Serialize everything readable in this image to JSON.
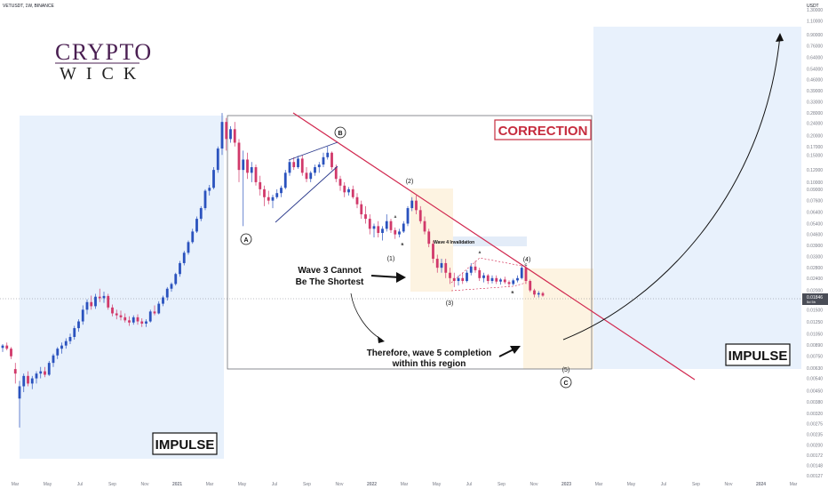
{
  "header": {
    "ticker_line": "VETUSDT, 1W, BINANCE",
    "currency": "USDT"
  },
  "logo": {
    "line1": "CRYPTO",
    "line2": "WICK"
  },
  "colors": {
    "up": "#2a52be",
    "down": "#d1396a",
    "trendline": "#d1284f",
    "impulse_zone": "#e8f1fc",
    "target_zone": "#fdf3e1",
    "correction_label": "#c62c3e",
    "invalidation_zone": "#e3ecf8"
  },
  "chart_data": {
    "type": "candlestick",
    "title": "VETUSDT, 1W, BINANCE",
    "y_axis_unit": "USDT",
    "y_scale": "log",
    "y_ticks": [
      "1.30000",
      "1.10000",
      "0.90000",
      "0.76000",
      "0.64000",
      "0.54000",
      "0.46000",
      "0.39000",
      "0.33000",
      "0.28000",
      "0.24000",
      "0.20000",
      "0.17000",
      "0.15000",
      "0.12000",
      "0.10000",
      "0.09000",
      "0.07600",
      "0.06400",
      "0.05400",
      "0.04600",
      "0.03900",
      "0.03300",
      "0.02800",
      "0.02400",
      "0.02000",
      "0.01700",
      "0.01500",
      "0.01250",
      "0.01050",
      "0.00890",
      "0.00750",
      "0.00630",
      "0.00540",
      "0.00450",
      "0.00380",
      "0.00320",
      "0.00275",
      "0.00235",
      "0.00200",
      "0.00172",
      "0.00148",
      "0.00127"
    ],
    "current_price": "0.01846",
    "current_price_sub": "5d 5h",
    "x_ticks": [
      "Mar",
      "May",
      "Jul",
      "Sep",
      "Nov",
      "2021",
      "Mar",
      "May",
      "Jul",
      "Sep",
      "Nov",
      "2022",
      "Mar",
      "May",
      "Jul",
      "Sep",
      "Nov",
      "2023",
      "Mar",
      "May",
      "Jul",
      "Sep",
      "Nov",
      "2024",
      "Mar"
    ],
    "annotations": {
      "correction": "CORRECTION",
      "impulse_left": "IMPULSE",
      "impulse_right": "IMPULSE",
      "wave_a": "A",
      "wave_b": "B",
      "wave_c": "C",
      "wave1": "(1)",
      "wave2": "(2)",
      "wave3": "(3)",
      "wave4": "(4)",
      "wave5": "(5)",
      "sub_a": "A",
      "sub_b": "B",
      "tri_a": "A",
      "tri_b": "B",
      "tri_c": "C",
      "wave4_invalidation": "Wave 4 Invalidation",
      "wave3_note_1": "Wave 3 Cannot",
      "wave3_note_2": "Be The Shortest",
      "wave5_note_1": "Therefore, wave 5 completion",
      "wave5_note_2": "within this region"
    },
    "candles": [
      [
        0.0085,
        0.009,
        0.008,
        0.0088
      ],
      [
        0.0088,
        0.0092,
        0.0082,
        0.0084
      ],
      [
        0.0084,
        0.0086,
        0.0072,
        0.0075
      ],
      [
        0.0062,
        0.0068,
        0.005,
        0.0058
      ],
      [
        0.004,
        0.0052,
        0.0026,
        0.0048
      ],
      [
        0.0048,
        0.0058,
        0.0044,
        0.0056
      ],
      [
        0.0056,
        0.006,
        0.0048,
        0.005
      ],
      [
        0.005,
        0.0056,
        0.0046,
        0.0054
      ],
      [
        0.0054,
        0.006,
        0.005,
        0.0058
      ],
      [
        0.0058,
        0.0064,
        0.0054,
        0.006
      ],
      [
        0.006,
        0.0064,
        0.0055,
        0.0057
      ],
      [
        0.0057,
        0.007,
        0.0056,
        0.0068
      ],
      [
        0.0068,
        0.0078,
        0.0064,
        0.0076
      ],
      [
        0.0076,
        0.0086,
        0.0072,
        0.0084
      ],
      [
        0.0084,
        0.0092,
        0.0078,
        0.0088
      ],
      [
        0.0088,
        0.0098,
        0.0084,
        0.0094
      ],
      [
        0.0094,
        0.0105,
        0.009,
        0.01
      ],
      [
        0.01,
        0.0118,
        0.0096,
        0.0114
      ],
      [
        0.0114,
        0.013,
        0.0108,
        0.0126
      ],
      [
        0.0126,
        0.016,
        0.012,
        0.015
      ],
      [
        0.015,
        0.0175,
        0.014,
        0.0168
      ],
      [
        0.0168,
        0.0185,
        0.015,
        0.0158
      ],
      [
        0.0158,
        0.019,
        0.0152,
        0.0182
      ],
      [
        0.0182,
        0.0205,
        0.0168,
        0.0178
      ],
      [
        0.0178,
        0.0196,
        0.0166,
        0.0184
      ],
      [
        0.0184,
        0.019,
        0.015,
        0.0155
      ],
      [
        0.0155,
        0.0162,
        0.0136,
        0.0142
      ],
      [
        0.0142,
        0.015,
        0.013,
        0.0138
      ],
      [
        0.0138,
        0.0148,
        0.0128,
        0.0134
      ],
      [
        0.0134,
        0.0142,
        0.0124,
        0.0128
      ],
      [
        0.0128,
        0.0136,
        0.0118,
        0.0124
      ],
      [
        0.0124,
        0.0138,
        0.012,
        0.0134
      ],
      [
        0.0134,
        0.014,
        0.012,
        0.0126
      ],
      [
        0.0126,
        0.0132,
        0.0116,
        0.0122
      ],
      [
        0.0122,
        0.013,
        0.0116,
        0.0126
      ],
      [
        0.0126,
        0.015,
        0.0124,
        0.0146
      ],
      [
        0.0146,
        0.016,
        0.0138,
        0.0142
      ],
      [
        0.0142,
        0.017,
        0.014,
        0.0164
      ],
      [
        0.0164,
        0.0185,
        0.0158,
        0.018
      ],
      [
        0.018,
        0.021,
        0.0172,
        0.0205
      ],
      [
        0.0205,
        0.0225,
        0.0196,
        0.022
      ],
      [
        0.022,
        0.026,
        0.0215,
        0.0255
      ],
      [
        0.0255,
        0.031,
        0.0245,
        0.03
      ],
      [
        0.03,
        0.036,
        0.029,
        0.035
      ],
      [
        0.035,
        0.042,
        0.034,
        0.041
      ],
      [
        0.041,
        0.05,
        0.04,
        0.048
      ],
      [
        0.048,
        0.06,
        0.047,
        0.058
      ],
      [
        0.058,
        0.07,
        0.056,
        0.068
      ],
      [
        0.068,
        0.09,
        0.066,
        0.088
      ],
      [
        0.088,
        0.096,
        0.082,
        0.092
      ],
      [
        0.092,
        0.125,
        0.09,
        0.12
      ],
      [
        0.12,
        0.17,
        0.115,
        0.165
      ],
      [
        0.165,
        0.28,
        0.15,
        0.245
      ],
      [
        0.245,
        0.26,
        0.16,
        0.19
      ],
      [
        0.19,
        0.23,
        0.18,
        0.22
      ],
      [
        0.22,
        0.245,
        0.17,
        0.18
      ],
      [
        0.18,
        0.19,
        0.1,
        0.12
      ],
      [
        0.12,
        0.16,
        0.052,
        0.14
      ],
      [
        0.14,
        0.155,
        0.105,
        0.115
      ],
      [
        0.115,
        0.135,
        0.1,
        0.125
      ],
      [
        0.125,
        0.13,
        0.095,
        0.1
      ],
      [
        0.1,
        0.11,
        0.082,
        0.09
      ],
      [
        0.09,
        0.095,
        0.07,
        0.08
      ],
      [
        0.08,
        0.088,
        0.072,
        0.076
      ],
      [
        0.076,
        0.083,
        0.068,
        0.08
      ],
      [
        0.08,
        0.09,
        0.078,
        0.085
      ],
      [
        0.085,
        0.095,
        0.08,
        0.092
      ],
      [
        0.092,
        0.12,
        0.09,
        0.115
      ],
      [
        0.115,
        0.14,
        0.11,
        0.135
      ],
      [
        0.135,
        0.145,
        0.12,
        0.125
      ],
      [
        0.125,
        0.148,
        0.122,
        0.142
      ],
      [
        0.142,
        0.15,
        0.11,
        0.115
      ],
      [
        0.115,
        0.125,
        0.1,
        0.105
      ],
      [
        0.105,
        0.118,
        0.1,
        0.115
      ],
      [
        0.115,
        0.13,
        0.11,
        0.125
      ],
      [
        0.125,
        0.135,
        0.115,
        0.13
      ],
      [
        0.13,
        0.155,
        0.125,
        0.145
      ],
      [
        0.145,
        0.17,
        0.14,
        0.155
      ],
      [
        0.155,
        0.158,
        0.12,
        0.125
      ],
      [
        0.125,
        0.13,
        0.1,
        0.105
      ],
      [
        0.105,
        0.11,
        0.088,
        0.095
      ],
      [
        0.095,
        0.1,
        0.08,
        0.086
      ],
      [
        0.086,
        0.093,
        0.082,
        0.09
      ],
      [
        0.09,
        0.095,
        0.078,
        0.08
      ],
      [
        0.08,
        0.085,
        0.068,
        0.072
      ],
      [
        0.072,
        0.076,
        0.058,
        0.062
      ],
      [
        0.062,
        0.07,
        0.054,
        0.058
      ],
      [
        0.058,
        0.062,
        0.046,
        0.05
      ],
      [
        0.05,
        0.054,
        0.044,
        0.052
      ],
      [
        0.052,
        0.056,
        0.044,
        0.047
      ],
      [
        0.047,
        0.052,
        0.042,
        0.05
      ],
      [
        0.05,
        0.062,
        0.048,
        0.056
      ],
      [
        0.056,
        0.058,
        0.047,
        0.049
      ],
      [
        0.049,
        0.051,
        0.043,
        0.046
      ],
      [
        0.046,
        0.05,
        0.044,
        0.048
      ],
      [
        0.048,
        0.056,
        0.047,
        0.054
      ],
      [
        0.054,
        0.07,
        0.052,
        0.068
      ],
      [
        0.068,
        0.08,
        0.065,
        0.076
      ],
      [
        0.076,
        0.082,
        0.062,
        0.066
      ],
      [
        0.066,
        0.07,
        0.054,
        0.056
      ],
      [
        0.056,
        0.06,
        0.046,
        0.048
      ],
      [
        0.048,
        0.05,
        0.038,
        0.04
      ],
      [
        0.04,
        0.042,
        0.03,
        0.032
      ],
      [
        0.032,
        0.034,
        0.026,
        0.028
      ],
      [
        0.028,
        0.032,
        0.026,
        0.03
      ],
      [
        0.03,
        0.032,
        0.024,
        0.026
      ],
      [
        0.026,
        0.028,
        0.022,
        0.024
      ],
      [
        0.024,
        0.026,
        0.021,
        0.023
      ],
      [
        0.023,
        0.025,
        0.0215,
        0.024
      ],
      [
        0.024,
        0.026,
        0.022,
        0.023
      ],
      [
        0.023,
        0.027,
        0.0225,
        0.026
      ],
      [
        0.026,
        0.03,
        0.025,
        0.0285
      ],
      [
        0.0285,
        0.031,
        0.026,
        0.027
      ],
      [
        0.027,
        0.028,
        0.023,
        0.024
      ],
      [
        0.024,
        0.026,
        0.0225,
        0.025
      ],
      [
        0.025,
        0.0255,
        0.022,
        0.023
      ],
      [
        0.023,
        0.025,
        0.0222,
        0.024
      ],
      [
        0.024,
        0.025,
        0.022,
        0.0228
      ],
      [
        0.0228,
        0.024,
        0.0218,
        0.0235
      ],
      [
        0.0235,
        0.0245,
        0.022,
        0.0226
      ],
      [
        0.0226,
        0.0232,
        0.0212,
        0.022
      ],
      [
        0.022,
        0.0238,
        0.0215,
        0.0232
      ],
      [
        0.0232,
        0.025,
        0.0225,
        0.024
      ],
      [
        0.024,
        0.029,
        0.0235,
        0.028
      ],
      [
        0.028,
        0.029,
        0.022,
        0.023
      ],
      [
        0.023,
        0.0235,
        0.0195,
        0.02
      ],
      [
        0.02,
        0.0205,
        0.018,
        0.0188
      ],
      [
        0.0188,
        0.0198,
        0.018,
        0.0192
      ],
      [
        0.0192,
        0.0196,
        0.0182,
        0.0185
      ]
    ]
  }
}
